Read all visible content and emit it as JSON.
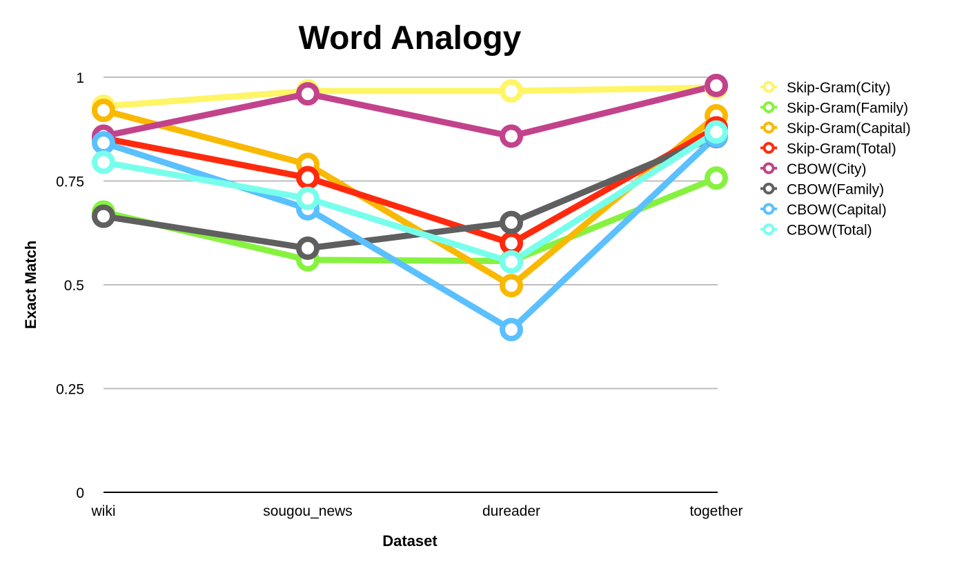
{
  "chart_data": {
    "type": "line",
    "title": "Word Analogy",
    "xlabel": "Dataset",
    "ylabel": "Exact Match",
    "categories": [
      "wiki",
      "sougou_news",
      "dureader",
      "together"
    ],
    "ylim": [
      0,
      1
    ],
    "yticks": [
      0,
      0.25,
      0.5,
      0.75,
      1
    ],
    "ytick_labels": [
      "0",
      "0.25",
      "0.5",
      "0.75",
      "1"
    ],
    "grid": true,
    "legend_position": "right",
    "series": [
      {
        "name": "Skip-Gram(City)",
        "color": "#FFF566",
        "values": [
          0.93,
          0.967,
          0.967,
          0.975
        ]
      },
      {
        "name": "Skip-Gram(Family)",
        "color": "#86F23F",
        "values": [
          0.675,
          0.56,
          0.557,
          0.757
        ]
      },
      {
        "name": "Skip-Gram(Capital)",
        "color": "#F9B900",
        "values": [
          0.92,
          0.79,
          0.498,
          0.907
        ]
      },
      {
        "name": "Skip-Gram(Total)",
        "color": "#FF2A0E",
        "values": [
          0.853,
          0.758,
          0.6,
          0.878
        ]
      },
      {
        "name": "CBOW(City)",
        "color": "#C2438B",
        "values": [
          0.858,
          0.96,
          0.858,
          0.98
        ]
      },
      {
        "name": "CBOW(Family)",
        "color": "#5F5F5F",
        "values": [
          0.665,
          0.588,
          0.65,
          0.857
        ]
      },
      {
        "name": "CBOW(Capital)",
        "color": "#5AC0FF",
        "values": [
          0.842,
          0.683,
          0.392,
          0.858
        ]
      },
      {
        "name": "CBOW(Total)",
        "color": "#77FFEC",
        "values": [
          0.795,
          0.708,
          0.555,
          0.868
        ]
      }
    ]
  }
}
